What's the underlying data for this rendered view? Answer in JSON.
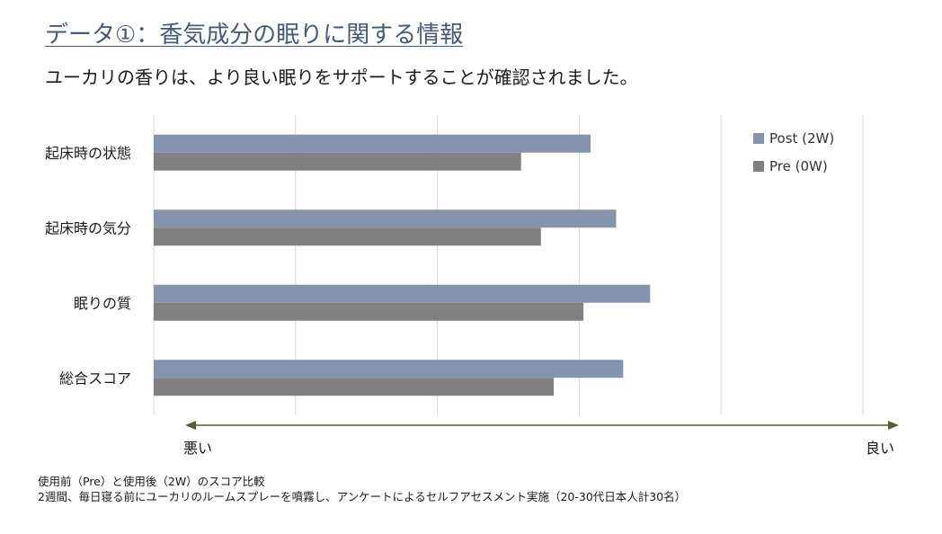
{
  "header": {
    "title": "データ①：香気成分の眠りに関する情報",
    "subtitle": "ユーカリの香りは、より良い眠りをサポートすることが確認されました。"
  },
  "chart_data": {
    "type": "bar",
    "orientation": "horizontal",
    "categories": [
      "起床時の状態",
      "起床時の気分",
      "眠りの質",
      "総合スコア"
    ],
    "series": [
      {
        "name": "Post (2W)",
        "color": "#8494ad",
        "values": [
          3.08,
          3.26,
          3.5,
          3.31
        ]
      },
      {
        "name": "Pre (0W)",
        "color": "#808080",
        "values": [
          2.59,
          2.73,
          3.03,
          2.82
        ]
      }
    ],
    "xlim": [
      0,
      5
    ],
    "grid": true,
    "legend": "top-right",
    "axis_arrow": {
      "left_label": "悪い",
      "right_label": "良い"
    }
  },
  "footnote": {
    "line1": "使用前（Pre）と使用後（2W）のスコア比較",
    "line2": "2週間、毎日寝る前にユーカリのルームスプレーを噴霧し、アンケートによるセルフアセスメント実施（20-30代日本人計30名）"
  }
}
